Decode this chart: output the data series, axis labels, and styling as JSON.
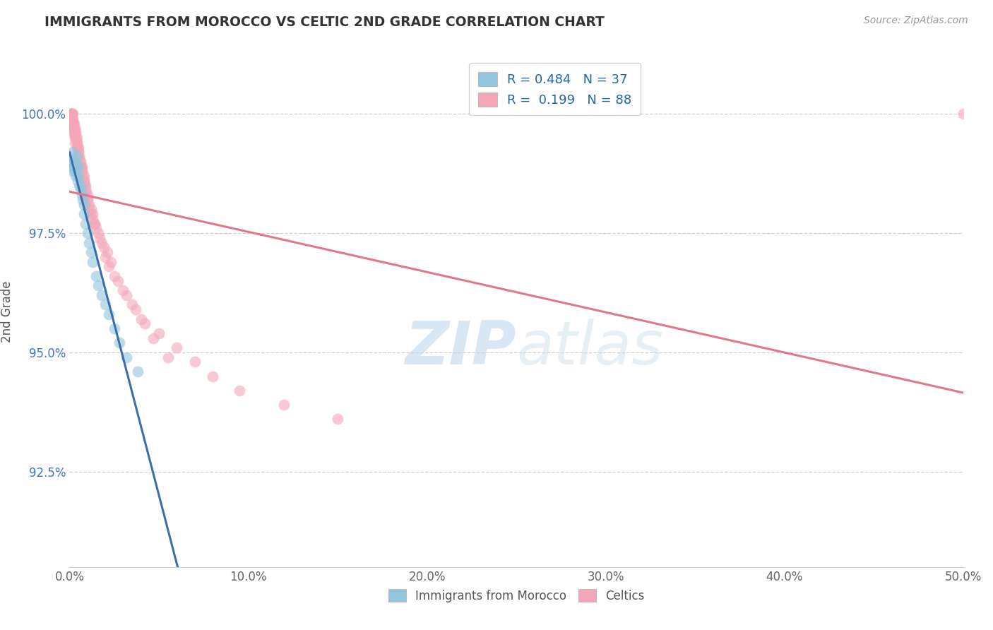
{
  "title": "IMMIGRANTS FROM MOROCCO VS CELTIC 2ND GRADE CORRELATION CHART",
  "source_text": "Source: ZipAtlas.com",
  "ylabel": "2nd Grade",
  "xlim": [
    0.0,
    50.0
  ],
  "ylim": [
    90.5,
    101.2
  ],
  "yticks": [
    92.5,
    95.0,
    97.5,
    100.0
  ],
  "ytick_labels": [
    "92.5%",
    "95.0%",
    "97.5%",
    "100.0%"
  ],
  "xticks": [
    0.0,
    10.0,
    20.0,
    30.0,
    40.0,
    50.0
  ],
  "xtick_labels": [
    "0.0%",
    "10.0%",
    "20.0%",
    "30.0%",
    "40.0%",
    "50.0%"
  ],
  "legend_r1": "R = 0.484",
  "legend_n1": "N = 37",
  "legend_r2": "R =  0.199",
  "legend_n2": "N = 88",
  "blue_color": "#92c5de",
  "pink_color": "#f4a6b8",
  "blue_line_color": "#3b6faa",
  "pink_line_color": "#e0788a",
  "watermark": "ZIPatlas",
  "watermark_color": "#c8dff0",
  "blue_scatter_x": [
    0.1,
    0.1,
    0.1,
    0.2,
    0.2,
    0.2,
    0.3,
    0.3,
    0.4,
    0.4,
    0.5,
    0.5,
    0.6,
    0.7,
    0.8,
    0.8,
    0.9,
    1.0,
    1.1,
    1.2,
    1.3,
    1.5,
    1.6,
    1.8,
    2.0,
    2.2,
    2.5,
    2.8,
    3.2,
    3.8,
    0.15,
    0.25,
    0.35,
    0.45,
    0.55,
    0.65,
    0.75
  ],
  "blue_scatter_y": [
    99.0,
    99.1,
    98.9,
    99.2,
    98.8,
    99.0,
    99.0,
    98.8,
    98.9,
    99.1,
    98.7,
    98.9,
    98.5,
    98.3,
    98.1,
    97.9,
    97.7,
    97.5,
    97.3,
    97.1,
    96.9,
    96.6,
    96.4,
    96.2,
    96.0,
    95.8,
    95.5,
    95.2,
    94.9,
    94.6,
    99.0,
    98.9,
    98.7,
    98.6,
    98.5,
    98.4,
    98.2
  ],
  "pink_scatter_x": [
    0.05,
    0.08,
    0.1,
    0.12,
    0.15,
    0.15,
    0.18,
    0.2,
    0.22,
    0.25,
    0.28,
    0.3,
    0.3,
    0.35,
    0.35,
    0.4,
    0.4,
    0.45,
    0.5,
    0.5,
    0.55,
    0.6,
    0.65,
    0.7,
    0.75,
    0.8,
    0.85,
    0.9,
    0.95,
    1.0,
    1.1,
    1.2,
    1.3,
    1.4,
    1.5,
    1.7,
    1.9,
    2.0,
    2.2,
    2.5,
    3.0,
    3.5,
    4.0,
    5.0,
    6.0,
    7.0,
    8.0,
    9.5,
    12.0,
    15.0,
    0.1,
    0.1,
    0.1,
    0.2,
    0.2,
    0.2,
    0.3,
    0.3,
    0.3,
    0.4,
    0.4,
    0.5,
    0.5,
    0.6,
    0.6,
    0.7,
    0.7,
    0.8,
    0.8,
    0.9,
    0.9,
    1.0,
    1.0,
    1.1,
    1.2,
    1.3,
    1.4,
    1.6,
    1.8,
    2.1,
    2.3,
    2.7,
    3.2,
    3.7,
    4.2,
    4.7,
    5.5,
    50.0
  ],
  "pink_scatter_y": [
    100.0,
    100.0,
    100.0,
    100.0,
    100.0,
    99.9,
    100.0,
    99.9,
    99.8,
    99.8,
    99.7,
    99.7,
    99.6,
    99.6,
    99.5,
    99.5,
    99.4,
    99.3,
    99.3,
    99.2,
    99.1,
    99.0,
    98.9,
    98.8,
    98.7,
    98.6,
    98.5,
    98.4,
    98.3,
    98.2,
    98.0,
    97.9,
    97.8,
    97.7,
    97.6,
    97.4,
    97.2,
    97.0,
    96.8,
    96.6,
    96.3,
    96.0,
    95.7,
    95.4,
    95.1,
    94.8,
    94.5,
    94.2,
    93.9,
    93.6,
    100.0,
    99.9,
    99.8,
    99.8,
    99.7,
    99.6,
    99.6,
    99.5,
    99.4,
    99.4,
    99.3,
    99.2,
    99.1,
    99.0,
    98.9,
    98.9,
    98.8,
    98.7,
    98.6,
    98.5,
    98.4,
    98.3,
    98.2,
    98.1,
    98.0,
    97.9,
    97.7,
    97.5,
    97.3,
    97.1,
    96.9,
    96.5,
    96.2,
    95.9,
    95.6,
    95.3,
    94.9,
    100.0
  ]
}
